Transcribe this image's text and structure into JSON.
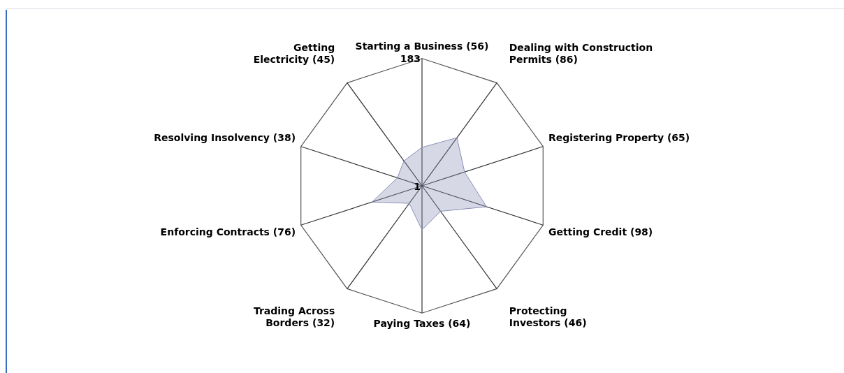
{
  "chart_data": {
    "type": "radar",
    "categories": [
      "Starting a Business (56)",
      "Dealing with Construction Permits (86)",
      "Registering Property (65)",
      "Getting Credit (98)",
      "Protecting Investors (46)",
      "Paying Taxes (64)",
      "Trading Across Borders (32)",
      "Enforcing Contracts (76)",
      "Resolving Insolvency (38)",
      "Getting Electricity (45)"
    ],
    "series": [
      {
        "color": "#8a8fb8",
        "values": [
          56,
          86,
          65,
          98,
          46,
          64,
          32,
          76,
          38,
          45
        ]
      }
    ],
    "ylim": [
      1,
      183
    ],
    "yticks": [
      1,
      183
    ],
    "grid": true,
    "legend": false,
    "marker": "none"
  }
}
